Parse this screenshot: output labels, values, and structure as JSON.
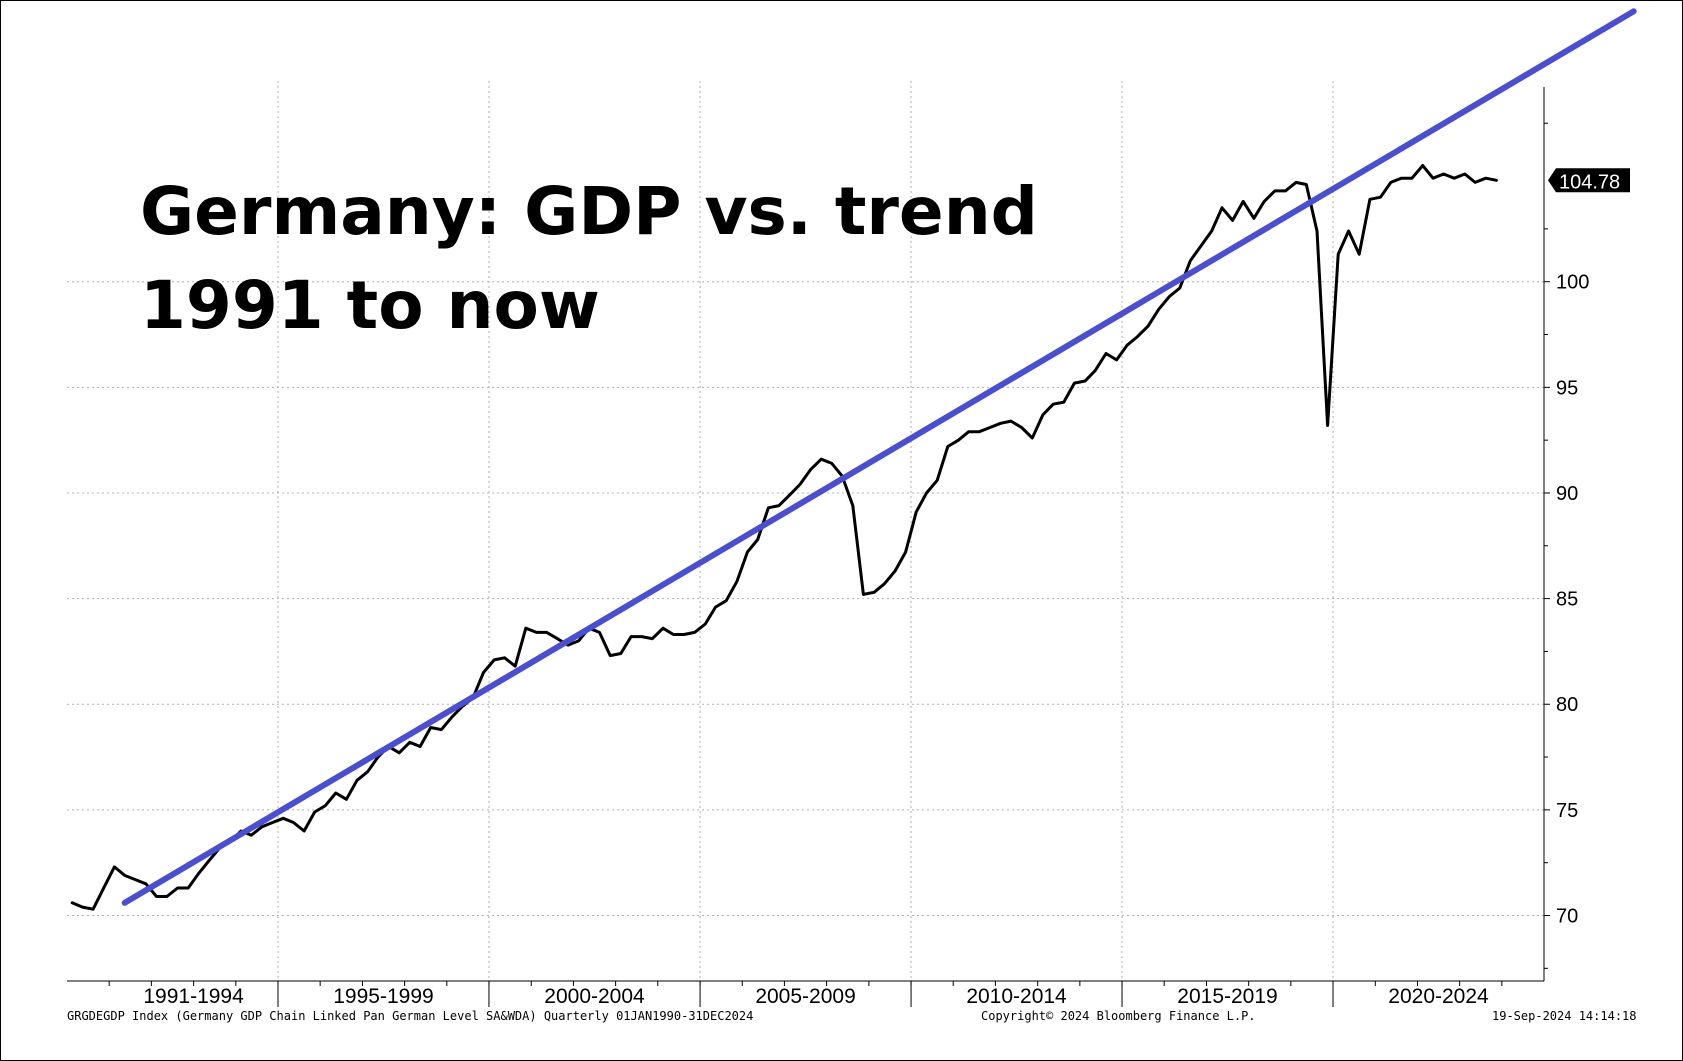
{
  "chart_data": {
    "type": "line",
    "title_line1": "Germany: GDP vs. trend",
    "title_line2": "1991 to now",
    "x_period_labels": [
      "1991-1994",
      "1995-1999",
      "2000-2004",
      "2005-2009",
      "2010-2014",
      "2015-2019",
      "2020-2024"
    ],
    "y_ticks": [
      70,
      75,
      80,
      85,
      90,
      95,
      100
    ],
    "ylim": [
      66.9,
      109.5
    ],
    "xlim": [
      "1990-01-01",
      "2024-12-31"
    ],
    "grid": true,
    "last_value_label": "104.78",
    "series": [
      {
        "key": "gdp",
        "color": "#000000",
        "points": [
          [
            "1990Q1",
            70.6
          ],
          [
            "1990Q2",
            70.4
          ],
          [
            "1990Q3",
            70.3
          ],
          [
            "1990Q4",
            71.3
          ],
          [
            "1991Q1",
            72.3
          ],
          [
            "1991Q2",
            71.9
          ],
          [
            "1991Q3",
            71.7
          ],
          [
            "1991Q4",
            71.5
          ],
          [
            "1992Q1",
            70.9
          ],
          [
            "1992Q2",
            70.9
          ],
          [
            "1992Q3",
            71.3
          ],
          [
            "1992Q4",
            71.3
          ],
          [
            "1993Q1",
            72.0
          ],
          [
            "1993Q2",
            72.6
          ],
          [
            "1993Q3",
            73.2
          ],
          [
            "1993Q4",
            73.5
          ],
          [
            "1994Q1",
            74.0
          ],
          [
            "1994Q2",
            73.8
          ],
          [
            "1994Q3",
            74.2
          ],
          [
            "1994Q4",
            74.4
          ],
          [
            "1995Q1",
            74.6
          ],
          [
            "1995Q2",
            74.4
          ],
          [
            "1995Q3",
            74.0
          ],
          [
            "1995Q4",
            74.9
          ],
          [
            "1996Q1",
            75.2
          ],
          [
            "1996Q2",
            75.8
          ],
          [
            "1996Q3",
            75.5
          ],
          [
            "1996Q4",
            76.4
          ],
          [
            "1997Q1",
            76.8
          ],
          [
            "1997Q2",
            77.5
          ],
          [
            "1997Q3",
            78.0
          ],
          [
            "1997Q4",
            77.7
          ],
          [
            "1998Q1",
            78.2
          ],
          [
            "1998Q2",
            78.0
          ],
          [
            "1998Q3",
            78.9
          ],
          [
            "1998Q4",
            78.8
          ],
          [
            "1999Q1",
            79.4
          ],
          [
            "1999Q2",
            79.9
          ],
          [
            "1999Q3",
            80.3
          ],
          [
            "1999Q4",
            81.5
          ],
          [
            "2000Q1",
            82.1
          ],
          [
            "2000Q2",
            82.2
          ],
          [
            "2000Q3",
            81.8
          ],
          [
            "2000Q4",
            83.6
          ],
          [
            "2001Q1",
            83.4
          ],
          [
            "2001Q2",
            83.4
          ],
          [
            "2001Q3",
            83.1
          ],
          [
            "2001Q4",
            82.8
          ],
          [
            "2002Q1",
            83.0
          ],
          [
            "2002Q2",
            83.6
          ],
          [
            "2002Q3",
            83.4
          ],
          [
            "2002Q4",
            82.3
          ],
          [
            "2003Q1",
            82.4
          ],
          [
            "2003Q2",
            83.2
          ],
          [
            "2003Q3",
            83.2
          ],
          [
            "2003Q4",
            83.1
          ],
          [
            "2004Q1",
            83.6
          ],
          [
            "2004Q2",
            83.3
          ],
          [
            "2004Q3",
            83.3
          ],
          [
            "2004Q4",
            83.4
          ],
          [
            "2005Q1",
            83.8
          ],
          [
            "2005Q2",
            84.6
          ],
          [
            "2005Q3",
            84.9
          ],
          [
            "2005Q4",
            85.8
          ],
          [
            "2006Q1",
            87.2
          ],
          [
            "2006Q2",
            87.8
          ],
          [
            "2006Q3",
            89.3
          ],
          [
            "2006Q4",
            89.4
          ],
          [
            "2007Q1",
            89.9
          ],
          [
            "2007Q2",
            90.4
          ],
          [
            "2007Q3",
            91.1
          ],
          [
            "2007Q4",
            91.6
          ],
          [
            "2008Q1",
            91.4
          ],
          [
            "2008Q2",
            90.8
          ],
          [
            "2008Q3",
            89.4
          ],
          [
            "2008Q4",
            85.2
          ],
          [
            "2009Q1",
            85.3
          ],
          [
            "2009Q2",
            85.7
          ],
          [
            "2009Q3",
            86.3
          ],
          [
            "2009Q4",
            87.2
          ],
          [
            "2010Q1",
            89.1
          ],
          [
            "2010Q2",
            90.0
          ],
          [
            "2010Q3",
            90.6
          ],
          [
            "2010Q4",
            92.2
          ],
          [
            "2011Q1",
            92.5
          ],
          [
            "2011Q2",
            92.9
          ],
          [
            "2011Q3",
            92.9
          ],
          [
            "2011Q4",
            93.1
          ],
          [
            "2012Q1",
            93.3
          ],
          [
            "2012Q2",
            93.4
          ],
          [
            "2012Q3",
            93.1
          ],
          [
            "2012Q4",
            92.6
          ],
          [
            "2013Q1",
            93.7
          ],
          [
            "2013Q2",
            94.2
          ],
          [
            "2013Q3",
            94.3
          ],
          [
            "2013Q4",
            95.2
          ],
          [
            "2014Q1",
            95.3
          ],
          [
            "2014Q2",
            95.8
          ],
          [
            "2014Q3",
            96.6
          ],
          [
            "2014Q4",
            96.3
          ],
          [
            "2015Q1",
            97.0
          ],
          [
            "2015Q2",
            97.4
          ],
          [
            "2015Q3",
            97.9
          ],
          [
            "2015Q4",
            98.7
          ],
          [
            "2016Q1",
            99.3
          ],
          [
            "2016Q2",
            99.7
          ],
          [
            "2016Q3",
            101.0
          ],
          [
            "2016Q4",
            101.7
          ],
          [
            "2017Q1",
            102.4
          ],
          [
            "2017Q2",
            103.5
          ],
          [
            "2017Q3",
            102.9
          ],
          [
            "2017Q4",
            103.8
          ],
          [
            "2018Q1",
            103.0
          ],
          [
            "2018Q2",
            103.8
          ],
          [
            "2018Q3",
            104.3
          ],
          [
            "2018Q4",
            104.3
          ],
          [
            "2019Q1",
            104.7
          ],
          [
            "2019Q2",
            104.6
          ],
          [
            "2019Q3",
            102.4
          ],
          [
            "2019Q4",
            93.2
          ],
          [
            "2020Q1",
            101.3
          ],
          [
            "2020Q2",
            102.4
          ],
          [
            "2020Q3",
            101.3
          ],
          [
            "2020Q4",
            103.9
          ],
          [
            "2021Q1",
            104.0
          ],
          [
            "2021Q2",
            104.7
          ],
          [
            "2021Q3",
            104.9
          ],
          [
            "2021Q4",
            104.9
          ],
          [
            "2022Q1",
            105.5
          ],
          [
            "2022Q2",
            104.9
          ],
          [
            "2022Q3",
            105.1
          ],
          [
            "2022Q4",
            104.9
          ],
          [
            "2023Q1",
            105.1
          ],
          [
            "2023Q2",
            104.7
          ],
          [
            "2023Q3",
            104.9
          ],
          [
            "2023Q4",
            104.8
          ]
        ]
      },
      {
        "key": "trend",
        "color": "#4a4fd0",
        "points": [
          [
            "1991Q2",
            70.6
          ],
          [
            "2027Q1",
            112.8
          ]
        ]
      }
    ]
  },
  "footer": {
    "left": "GRGDEGDP Index (Germany GDP Chain Linked Pan German Level SA&WDA)  Quarterly 01JAN1990-31DEC2024",
    "center": "Copyright© 2024 Bloomberg Finance L.P.",
    "right": "19-Sep-2024 14:14:18"
  }
}
